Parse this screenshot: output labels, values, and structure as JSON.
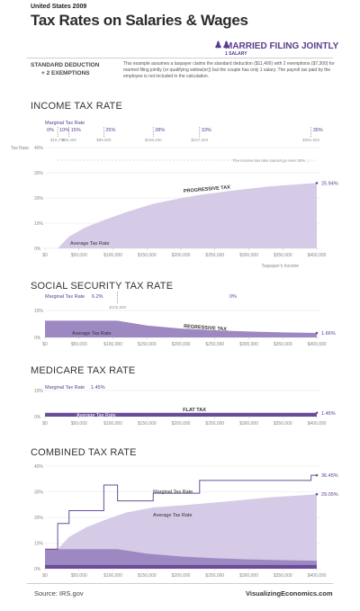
{
  "header": {
    "country": "United States 2009",
    "title": "Tax Rates on Salaries & Wages",
    "status": "MARRIED FILING JOINTLY",
    "status_sub": "1 SALARY"
  },
  "assumptions": {
    "std_line1": "STANDARD DEDUCTION",
    "std_line2": "+ 2 EXEMPTIONS",
    "description": "This example assumes a taxpayer claims the standard deduction ($11,400) with 2 exemptions ($7,300) for married filing jointly (or qualifying widow(er)) but the couple has only 1 salary. The payroll tax paid by the employee is not included in the calculation."
  },
  "colors": {
    "purple_dark": "#6b4c9a",
    "purple_mid": "#9e88c2",
    "purple_light": "#d5cbe6",
    "grid": "#e6e6e6"
  },
  "chart_data": [
    {
      "type": "area",
      "title": "INCOME TAX RATE",
      "ylabel": "Tax Rate",
      "xlabel": "Taxpayer's Income",
      "ylim": [
        0,
        40
      ],
      "xlim": [
        0,
        400000
      ],
      "yticks": [
        "0%",
        "10%",
        "20%",
        "30%",
        "40%"
      ],
      "xticks": [
        "$0",
        "$50,000",
        "$100,000",
        "$150,000",
        "$200,000",
        "$250,000",
        "$300,000",
        "$350,000",
        "$400,000"
      ],
      "marginal_header": "Marginal Tax Rate",
      "brackets": [
        {
          "rate": "0%",
          "threshold": "$18,700",
          "x": 18700
        },
        {
          "rate": "10%",
          "threshold": "$35,400",
          "x": 35400
        },
        {
          "rate": "15%",
          "threshold": "$86,600",
          "x": 86600
        },
        {
          "rate": "25%",
          "threshold": "$159,250",
          "x": 159250
        },
        {
          "rate": "28%",
          "threshold": "$227,550",
          "x": 227550
        },
        {
          "rate": "33%",
          "threshold": "$391,650",
          "x": 391650
        },
        {
          "rate": "35%",
          "threshold": "",
          "x": 400000
        }
      ],
      "series": [
        {
          "name": "Average Tax Rate",
          "x": [
            0,
            18700,
            35400,
            60000,
            86600,
            120000,
            159250,
            200000,
            227550,
            275000,
            330000,
            391650,
            400000
          ],
          "values": [
            0,
            0,
            4.7,
            8.4,
            11.2,
            14.4,
            17.7,
            19.9,
            21.2,
            22.9,
            24.6,
            25.8,
            25.94
          ]
        }
      ],
      "annotations": {
        "curve_label": "PROGRESSIVE TAX",
        "cap_note": "The income tax rate cannot go over 35%",
        "end_value": "25.94%"
      }
    },
    {
      "type": "area",
      "title": "SOCIAL SECURITY TAX RATE",
      "ylim": [
        0,
        10
      ],
      "yticks": [
        "0%",
        "10%"
      ],
      "xticks": [
        "$0",
        "$50,000",
        "$100,000",
        "$150,000",
        "$200,000",
        "$250,000",
        "$300,000",
        "$350,000",
        "$400,000"
      ],
      "marginal_header": "Marginal Tax Rate",
      "marginal_rates": [
        "6.2%",
        "0%"
      ],
      "threshold": "$106,800",
      "series": [
        {
          "name": "Average Tax Rate",
          "x": [
            0,
            106800,
            150000,
            200000,
            250000,
            300000,
            350000,
            400000
          ],
          "values": [
            6.2,
            6.2,
            4.41,
            3.31,
            2.65,
            2.21,
            1.89,
            1.66
          ]
        }
      ],
      "annotations": {
        "curve_label": "REGRESSIVE TAX",
        "end_value": "1.66%"
      }
    },
    {
      "type": "area",
      "title": "MEDICARE TAX RATE",
      "ylim": [
        0,
        10
      ],
      "yticks": [
        "0%",
        "10%"
      ],
      "xticks": [
        "$0",
        "$50,000",
        "$100,000",
        "$150,000",
        "$200,000",
        "$250,000",
        "$300,000",
        "$350,000",
        "$400,000"
      ],
      "marginal_header": "Marginal Tax Rate",
      "marginal_rates": [
        "1.45%"
      ],
      "series": [
        {
          "name": "Average Tax Rate",
          "x": [
            0,
            400000
          ],
          "values": [
            1.45,
            1.45
          ]
        }
      ],
      "annotations": {
        "curve_label": "FLAT TAX",
        "end_value": "1.45%"
      }
    },
    {
      "type": "area",
      "title": "COMBINED TAX RATE",
      "ylim": [
        0,
        40
      ],
      "yticks": [
        "0%",
        "10%",
        "20%",
        "30%",
        "40%"
      ],
      "xticks": [
        "$0",
        "$50,000",
        "$100,000",
        "$150,000",
        "$200,000",
        "$250,000",
        "$300,000",
        "$350,000",
        "$400,000"
      ],
      "series": [
        {
          "name": "Average Tax Rate",
          "x": [
            0,
            18700,
            35400,
            60000,
            86600,
            106800,
            120000,
            159250,
            200000,
            227550,
            275000,
            330000,
            391650,
            400000
          ],
          "values": [
            7.65,
            7.65,
            12.35,
            16.05,
            18.85,
            20.75,
            21.95,
            23.9,
            24.7,
            25.3,
            26.4,
            27.8,
            28.85,
            29.05
          ]
        },
        {
          "name": "Marginal Tax Rate",
          "x": [
            0,
            18700,
            18700,
            35400,
            35400,
            86600,
            86600,
            106800,
            106800,
            159250,
            159250,
            227550,
            227550,
            391650,
            391650,
            400000
          ],
          "values": [
            7.65,
            7.65,
            17.65,
            17.65,
            22.65,
            22.65,
            32.65,
            32.65,
            26.45,
            26.45,
            29.45,
            29.45,
            34.45,
            34.45,
            36.45,
            36.45
          ]
        }
      ],
      "annotations": {
        "marginal_label": "Marginal Tax Rate",
        "average_label": "Average Tax Rate",
        "marginal_end": "36.45%",
        "average_end": "29.05%"
      }
    }
  ],
  "footer": {
    "source": "Source:   IRS.gov",
    "brand": "VisualizingEconomics.com"
  }
}
